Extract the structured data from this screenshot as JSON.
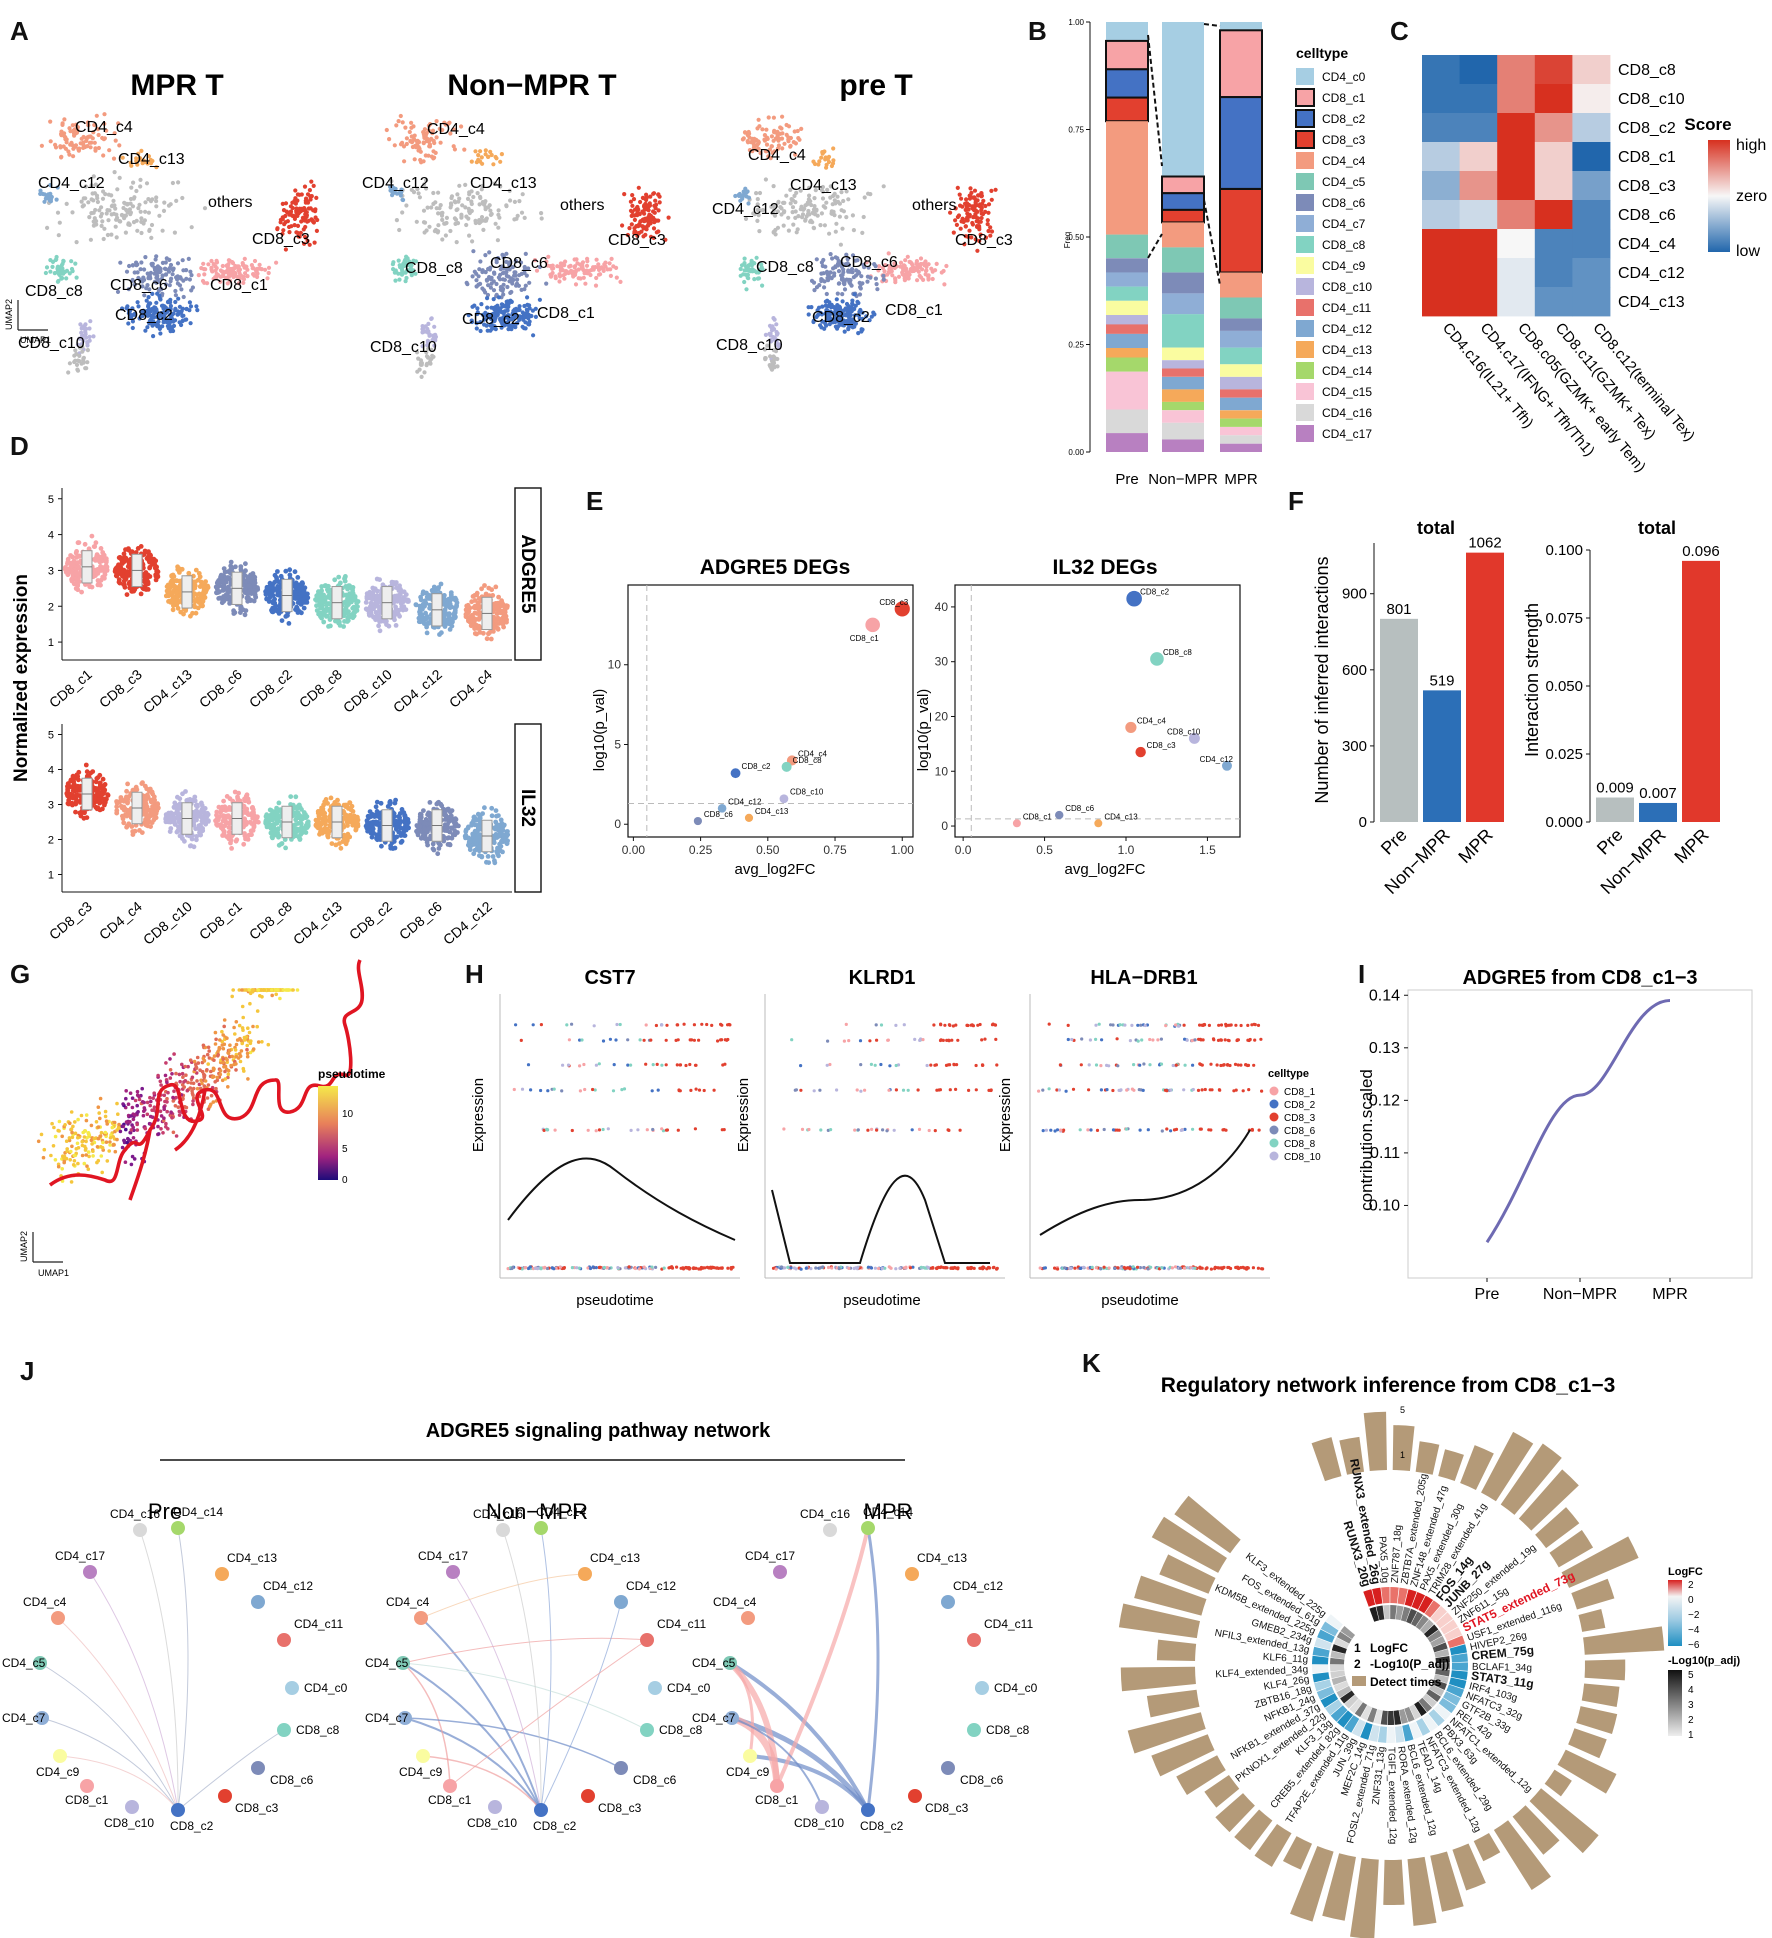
{
  "panel_letters": [
    "A",
    "B",
    "C",
    "D",
    "E",
    "F",
    "G",
    "H",
    "I",
    "J",
    "K"
  ],
  "colors": {
    "CD4_c0": "#a6cee3",
    "CD8_c1": "#f7a3a6",
    "CD8_c2": "#4472c4",
    "CD8_c3": "#e2402f",
    "CD4_c4": "#f39b7f",
    "CD4_c5": "#7ec8b4",
    "CD8_c6": "#7d8bb8",
    "CD4_c7": "#8faed6",
    "CD8_c8": "#82d3c2",
    "CD4_c9": "#fafca0",
    "CD8_c10": "#b8b5dd",
    "CD4_c11": "#e8716b",
    "CD4_c12": "#7fa8d1",
    "CD4_c13": "#f5a95a",
    "CD4_c14": "#a5d86b",
    "CD4_c15": "#f9c4d6",
    "CD4_c16": "#d9d9d9",
    "CD4_c17": "#b880c1",
    "others": "#bdbdbd",
    "pre": "#b7bfbf",
    "nonmpr": "#2c6fb7",
    "mpr": "#e1382b",
    "curve": "#6e6ab2",
    "bar_k": "#b49a78"
  },
  "panelA": {
    "titles": [
      "MPR T",
      "Non−MPR T",
      "pre T"
    ],
    "axis_x": "UMAP1",
    "axis_y": "UMAP2",
    "labels": [
      "CD4_c4",
      "CD4_c13",
      "CD4_c12",
      "others",
      "CD8_c3",
      "CD8_c8",
      "CD8_c6",
      "CD8_c1",
      "CD8_c2",
      "CD8_c10"
    ]
  },
  "panelB": {
    "title": "celltype",
    "ylabel": "Freq",
    "yticks": [
      "0.00",
      "0.25",
      "0.50",
      "0.75",
      "1.00"
    ],
    "groups": [
      "Pre",
      "Non−MPR",
      "MPR"
    ],
    "legend": [
      "CD4_c0",
      "CD8_c1",
      "CD8_c2",
      "CD8_c3",
      "CD4_c4",
      "CD4_c5",
      "CD8_c6",
      "CD4_c7",
      "CD8_c8",
      "CD4_c9",
      "CD8_c10",
      "CD4_c11",
      "CD4_c12",
      "CD4_c13",
      "CD4_c14",
      "CD4_c15",
      "CD4_c16",
      "CD4_c17"
    ]
  },
  "panelC": {
    "rows": [
      "CD8_c8",
      "CD8_c10",
      "CD8_c2",
      "CD8_c1",
      "CD8_c3",
      "CD8_c6",
      "CD4_c4",
      "CD4_c12",
      "CD4_c13"
    ],
    "cols": [
      "CD4.c16(IL21+ Tfh)",
      "CD4.c17(IFNG+ Tfh/Th1)",
      "CD8.c05(GZMK+ early Tem)",
      "CD8.c11(GZMK+ Tex)",
      "CD8.c12(terminal Tex)"
    ],
    "values": [
      [
        -0.9,
        -1.0,
        0.6,
        0.9,
        0.2
      ],
      [
        -0.9,
        -0.9,
        0.6,
        1.0,
        0.05
      ],
      [
        -0.8,
        -0.8,
        1.0,
        0.5,
        -0.3
      ],
      [
        -0.3,
        0.2,
        1.0,
        0.2,
        -1.0
      ],
      [
        -0.5,
        0.5,
        1.0,
        0.2,
        -0.6
      ],
      [
        -0.3,
        -0.2,
        0.6,
        1.0,
        -0.8
      ],
      [
        1.0,
        1.0,
        0.0,
        -0.8,
        -0.8
      ],
      [
        1.0,
        1.0,
        -0.1,
        -0.8,
        -0.7
      ],
      [
        1.0,
        1.0,
        -0.1,
        -0.7,
        -0.7
      ]
    ],
    "legend_title": "Score",
    "legend_labels": [
      "high",
      "zero",
      "low"
    ]
  },
  "panelD": {
    "ylabel": "Normalized expression",
    "genes": [
      "ADGRE5",
      "IL32"
    ],
    "yticks": [
      "1",
      "2",
      "3",
      "4",
      "5"
    ],
    "adgre5_groups": [
      "CD8_c1",
      "CD8_c3",
      "CD4_c13",
      "CD8_c6",
      "CD8_c2",
      "CD8_c8",
      "CD8_c10",
      "CD4_c12",
      "CD4_c4"
    ],
    "adgre5_medians": [
      3.1,
      3.0,
      2.4,
      2.5,
      2.3,
      2.1,
      2.1,
      1.9,
      1.8
    ],
    "il32_groups": [
      "CD8_c3",
      "CD4_c4",
      "CD8_c10",
      "CD8_c1",
      "CD8_c8",
      "CD4_c13",
      "CD8_c2",
      "CD8_c6",
      "CD4_c12"
    ],
    "il32_medians": [
      3.3,
      2.9,
      2.6,
      2.6,
      2.5,
      2.5,
      2.4,
      2.4,
      2.1
    ]
  },
  "panelE": {
    "plots": [
      {
        "title": "ADGRE5 DEGs",
        "xlabel": "avg_log2FC",
        "ylabel": "log10(p_val)",
        "xticks": [
          "0.00",
          "0.25",
          "0.50",
          "0.75",
          "1.00"
        ],
        "yticks": [
          "0",
          "5",
          "10"
        ],
        "points": [
          {
            "label": "CD8_c3",
            "x": 1.0,
            "y": 13.5,
            "color": "#e2402f"
          },
          {
            "label": "CD8_c1",
            "x": 0.89,
            "y": 12.5,
            "color": "#f7a3a6"
          },
          {
            "label": "CD4_c4",
            "x": 0.59,
            "y": 4.0,
            "color": "#f39b7f"
          },
          {
            "label": "CD8_c8",
            "x": 0.57,
            "y": 3.6,
            "color": "#82d3c2"
          },
          {
            "label": "CD8_c2",
            "x": 0.38,
            "y": 3.2,
            "color": "#4472c4"
          },
          {
            "label": "CD8_c10",
            "x": 0.56,
            "y": 1.6,
            "color": "#b8b5dd"
          },
          {
            "label": "CD4_c12",
            "x": 0.33,
            "y": 1.0,
            "color": "#7fa8d1"
          },
          {
            "label": "CD4_c13",
            "x": 0.43,
            "y": 0.4,
            "color": "#f5a95a"
          },
          {
            "label": "CD8_c6",
            "x": 0.24,
            "y": 0.2,
            "color": "#7d8bb8"
          }
        ]
      },
      {
        "title": "IL32 DEGs",
        "xlabel": "avg_log2FC",
        "ylabel": "log10(p_val)",
        "xticks": [
          "0.0",
          "0.5",
          "1.0",
          "1.5"
        ],
        "yticks": [
          "0",
          "10",
          "20",
          "30",
          "40"
        ],
        "points": [
          {
            "label": "CD8_c2",
            "x": 1.05,
            "y": 41.5,
            "color": "#4472c4"
          },
          {
            "label": "CD8_c8",
            "x": 1.19,
            "y": 30.5,
            "color": "#82d3c2"
          },
          {
            "label": "CD4_c4",
            "x": 1.03,
            "y": 18.0,
            "color": "#f39b7f"
          },
          {
            "label": "CD8_c10",
            "x": 1.42,
            "y": 16.0,
            "color": "#b8b5dd"
          },
          {
            "label": "CD8_c3",
            "x": 1.09,
            "y": 13.5,
            "color": "#e2402f"
          },
          {
            "label": "CD4_c12",
            "x": 1.62,
            "y": 11.0,
            "color": "#7fa8d1"
          },
          {
            "label": "CD8_c6",
            "x": 0.59,
            "y": 2.0,
            "color": "#7d8bb8"
          },
          {
            "label": "CD8_c1",
            "x": 0.33,
            "y": 0.5,
            "color": "#f7a3a6"
          },
          {
            "label": "CD4_c13",
            "x": 0.83,
            "y": 0.5,
            "color": "#f5a95a"
          }
        ]
      }
    ]
  },
  "panelF": {
    "bars": [
      {
        "title": "total",
        "ylabel": "Number of inferred interactions",
        "yticks": [
          "0",
          "300",
          "600",
          "900"
        ],
        "ymax": 1100,
        "categories": [
          "Pre",
          "Non−MPR",
          "MPR"
        ],
        "values": [
          801,
          519,
          1062
        ],
        "labels": [
          "801",
          "519",
          "1062"
        ]
      },
      {
        "title": "total",
        "ylabel": "Interaction strength",
        "yticks": [
          "0.000",
          "0.025",
          "0.050",
          "0.075",
          "0.100"
        ],
        "ymax": 0.1,
        "categories": [
          "Pre",
          "Non−MPR",
          "MPR"
        ],
        "values": [
          0.009,
          0.007,
          0.096
        ],
        "labels": [
          "0.009",
          "0.007",
          "0.096"
        ]
      }
    ]
  },
  "panelG": {
    "legend_title": "pseudotime",
    "legend_ticks": [
      "10",
      "5",
      "0"
    ],
    "axis_x": "UMAP1",
    "axis_y": "UMAP2"
  },
  "panelH": {
    "titles": [
      "CST7",
      "KLRD1",
      "HLA−DRB1"
    ],
    "xlabel": "pseudotime",
    "ylabel": "Expression",
    "legend_title": "celltype",
    "legend": [
      "CD8_1",
      "CD8_2",
      "CD8_3",
      "CD8_6",
      "CD8_8",
      "CD8_10"
    ]
  },
  "panelI": {
    "title": "ADGRE5 from CD8_c1−3",
    "ylabel": "contribution.scaled",
    "categories": [
      "Pre",
      "Non−MPR",
      "MPR"
    ],
    "yticks": [
      "0.10",
      "0.11",
      "0.12",
      "0.13",
      "0.14"
    ],
    "values": [
      0.093,
      0.121,
      0.139
    ]
  },
  "panelJ": {
    "title": "ADGRE5 signaling pathway network",
    "networks": [
      "Pre",
      "Non−MPR",
      "MPR"
    ],
    "nodes": [
      "CD4_c16",
      "CD4_c14",
      "CD4_c13",
      "CD4_c17",
      "CD4_c12",
      "CD4_c4",
      "CD4_c11",
      "CD4_c5",
      "CD4_c0",
      "CD4_c7",
      "CD8_c8",
      "CD4_c9",
      "CD8_c6",
      "CD8_c1",
      "CD8_c10",
      "CD8_c2",
      "CD8_c3"
    ]
  },
  "panelK": {
    "title": "Regulatory network inference from CD8_c1−3",
    "center_legend": [
      "LogFC",
      "-Log10(P_adj)",
      "Detect times"
    ],
    "center_nums": [
      "1",
      "2"
    ],
    "legend_logfc_title": "LogFC",
    "legend_logfc_ticks": [
      "2",
      "0",
      "−2",
      "−4",
      "−6"
    ],
    "legend_p_title": "-Log10(p_adj)",
    "legend_p_ticks": [
      "5",
      "4",
      "3",
      "2",
      "1"
    ],
    "scale_ticks": [
      "5",
      "1"
    ],
    "genes": [
      "RUNX3_20g",
      "RUNX3_extended_26g",
      "PAX5_10g",
      "ZNF787_18g",
      "ZBTB7A_extended_205g",
      "ZNF148_extended_47g",
      "PAX5_extended_30g",
      "TRIM28_extended_41g",
      "FOS_14g",
      "JUNB_27g",
      "ZNF250_extended_19g",
      "ZNF611_15g",
      "STAT5_extended_73g",
      "USF1_extended_116g",
      "HIVEP2_26g",
      "CREM_75g",
      "BCLAF1_34g",
      "STAT3_11g",
      "IRF4_103g",
      "NFATC3_32g",
      "GTF2B_33g",
      "REL_42g",
      "NFATC1_extended_12g",
      "PBX3_63g",
      "BCL6_extended_29g",
      "NFATC3_extended_12g",
      "TEAD1_14g",
      "BCL6_extended_12g",
      "RORA_extended_12g",
      "TGIF1_extended_12g",
      "ZNF331_13g",
      "FOSL2_extended_71g",
      "MEF2C_14g",
      "JUN_39g",
      "TFAP2E_extended_11g",
      "CREB5_extended_82g",
      "KLF3_13g",
      "PKNOX1_extended_22g",
      "NFKB1_extended_37g",
      "NFKB1_24g",
      "ZBTB16_18g",
      "KLF4_26g",
      "KLF4_extended_34g",
      "KLF6_11g",
      "NFIL3_extended_13g",
      "GMEB2_234g",
      "KDM5B_extended_225g",
      "FOS_extended_61g",
      "KLF3_extended_225g"
    ],
    "bold_genes": [
      "RUNX3_20g",
      "RUNX3_extended_26g",
      "FOS_14g",
      "JUNB_27g",
      "CREM_75g",
      "STAT3_11g"
    ],
    "highlight_gene": "STAT5_extended_73g"
  }
}
